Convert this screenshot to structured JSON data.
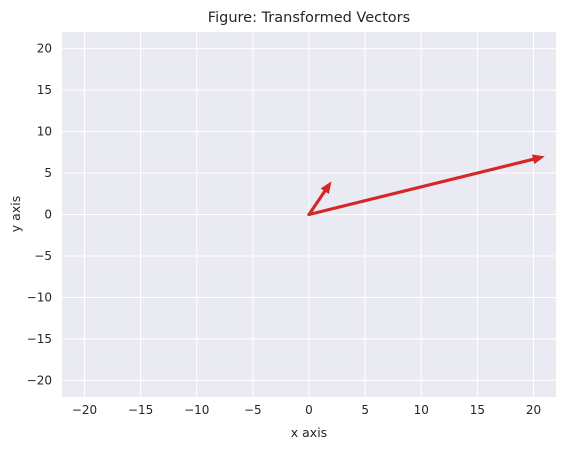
{
  "chart_data": {
    "type": "vector",
    "title": "Figure: Transformed Vectors",
    "xlabel": "x axis",
    "ylabel": "y axis",
    "xlim": [
      -22,
      22
    ],
    "ylim": [
      -22,
      22
    ],
    "xticks": [
      -20,
      -15,
      -10,
      -5,
      0,
      5,
      10,
      15,
      20
    ],
    "yticks": [
      -20,
      -15,
      -10,
      -5,
      0,
      5,
      10,
      15,
      20
    ],
    "grid": true,
    "vectors": [
      {
        "origin": [
          0,
          0
        ],
        "end": [
          2,
          4
        ],
        "color": "#d62728"
      },
      {
        "origin": [
          0,
          0
        ],
        "end": [
          21,
          7
        ],
        "color": "#d62728"
      }
    ]
  },
  "colors": {
    "plot_background": "#eaeaf2",
    "grid": "#ffffff",
    "vector": "#d62728"
  }
}
